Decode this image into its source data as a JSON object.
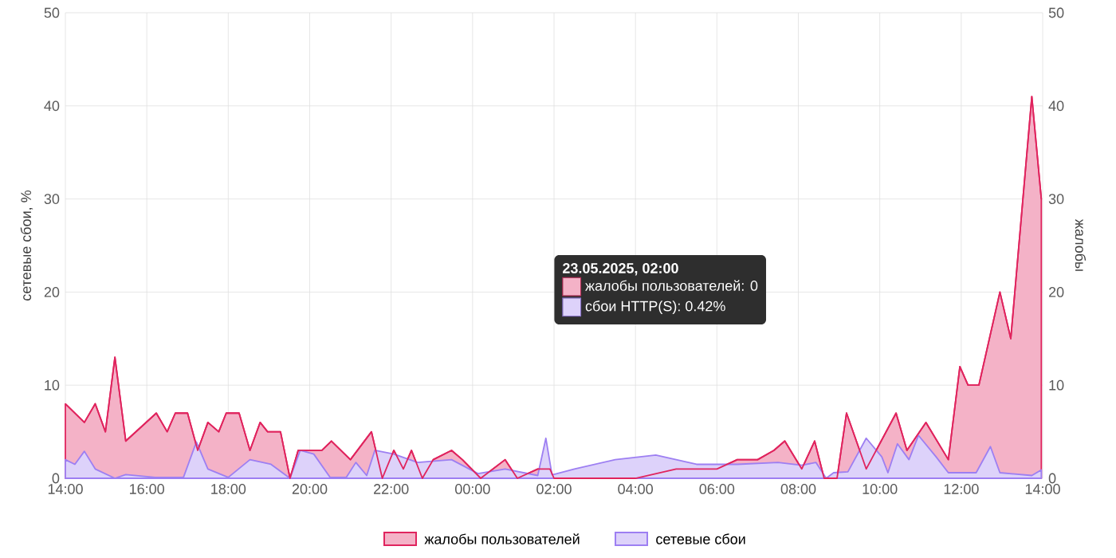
{
  "chart_data": {
    "type": "area",
    "xlim": [
      "2025-05-22T14:00",
      "2025-05-23T14:00"
    ],
    "xticks": [
      {
        "value": "2025-05-22T14:00",
        "label": "14:00"
      },
      {
        "value": "2025-05-22T16:00",
        "label": "16:00"
      },
      {
        "value": "2025-05-22T18:00",
        "label": "18:00"
      },
      {
        "value": "2025-05-22T20:00",
        "label": "20:00"
      },
      {
        "value": "2025-05-22T22:00",
        "label": "22:00"
      },
      {
        "value": "2025-05-23T00:00",
        "label": "00:00"
      },
      {
        "value": "2025-05-23T02:00",
        "label": "02:00"
      },
      {
        "value": "2025-05-23T04:00",
        "label": "04:00"
      },
      {
        "value": "2025-05-23T06:00",
        "label": "06:00"
      },
      {
        "value": "2025-05-23T08:00",
        "label": "08:00"
      },
      {
        "value": "2025-05-23T10:00",
        "label": "10:00"
      },
      {
        "value": "2025-05-23T12:00",
        "label": "12:00"
      },
      {
        "value": "2025-05-23T14:00",
        "label": "14:00"
      }
    ],
    "ylim": [
      0,
      50
    ],
    "yticks": [
      0,
      10,
      20,
      30,
      40,
      50
    ],
    "y2lim": [
      0,
      50
    ],
    "y2ticks": [
      0,
      10,
      20,
      30,
      40,
      50
    ],
    "ylabel": "сетевые сбои, %",
    "y2label": "жалобы",
    "grid": true,
    "legend": "bottom",
    "marker": "none",
    "series": [
      {
        "name": "жалобы пользователей",
        "color": "#e0245e",
        "axis": "y2",
        "x": [
          "2025-05-22T14:00",
          "2025-05-22T14:28",
          "2025-05-22T14:44",
          "2025-05-22T14:59",
          "2025-05-22T15:13",
          "2025-05-22T15:29",
          "2025-05-22T16:14",
          "2025-05-22T16:30",
          "2025-05-22T16:42",
          "2025-05-22T17:00",
          "2025-05-22T17:15",
          "2025-05-22T17:30",
          "2025-05-22T17:46",
          "2025-05-22T17:57",
          "2025-05-22T18:16",
          "2025-05-22T18:32",
          "2025-05-22T18:47",
          "2025-05-22T18:58",
          "2025-05-22T19:17",
          "2025-05-22T19:31",
          "2025-05-22T19:43",
          "2025-05-22T20:18",
          "2025-05-22T20:32",
          "2025-05-22T21:00",
          "2025-05-22T21:31",
          "2025-05-22T21:47",
          "2025-05-22T22:04",
          "2025-05-22T22:18",
          "2025-05-22T22:30",
          "2025-05-22T22:46",
          "2025-05-22T23:02",
          "2025-05-22T23:29",
          "2025-05-22T23:45",
          "2025-05-23T00:12",
          "2025-05-23T00:48",
          "2025-05-23T01:06",
          "2025-05-23T01:36",
          "2025-05-23T01:54",
          "2025-05-23T02:00",
          "2025-05-23T03:00",
          "2025-05-23T04:00",
          "2025-05-23T05:00",
          "2025-05-23T06:00",
          "2025-05-23T06:30",
          "2025-05-23T07:00",
          "2025-05-23T07:24",
          "2025-05-23T07:40",
          "2025-05-23T08:05",
          "2025-05-23T08:24",
          "2025-05-23T08:38",
          "2025-05-23T08:57",
          "2025-05-23T09:11",
          "2025-05-23T09:40",
          "2025-05-23T10:24",
          "2025-05-23T10:40",
          "2025-05-23T11:08",
          "2025-05-23T11:41",
          "2025-05-23T11:58",
          "2025-05-23T12:10",
          "2025-05-23T12:26",
          "2025-05-23T12:57",
          "2025-05-23T13:13",
          "2025-05-23T13:44",
          "2025-05-23T13:58"
        ],
        "values": [
          8,
          6,
          8,
          5,
          13,
          4,
          7,
          5,
          7,
          7,
          3,
          6,
          5,
          7,
          7,
          3,
          6,
          5,
          5,
          0,
          3,
          3,
          4,
          2,
          5,
          0,
          3,
          1,
          3,
          0,
          2,
          3,
          2,
          0,
          2,
          0,
          1,
          1,
          0,
          0,
          0,
          1,
          1,
          2,
          2,
          3,
          4,
          1,
          4,
          0,
          0,
          7,
          1,
          7,
          3,
          6,
          2,
          12,
          10,
          10,
          20,
          15,
          41,
          30
        ]
      },
      {
        "name": "сетевые сбои",
        "color": "#9d7ff2",
        "x": [
          "2025-05-22T14:00",
          "2025-05-22T14:14",
          "2025-05-22T14:28",
          "2025-05-22T14:44",
          "2025-05-22T15:13",
          "2025-05-22T15:29",
          "2025-05-22T16:12",
          "2025-05-22T16:54",
          "2025-05-22T17:13",
          "2025-05-22T17:30",
          "2025-05-22T18:00",
          "2025-05-22T18:32",
          "2025-05-22T19:03",
          "2025-05-22T19:31",
          "2025-05-22T19:46",
          "2025-05-22T20:06",
          "2025-05-22T20:30",
          "2025-05-22T20:54",
          "2025-05-22T21:08",
          "2025-05-22T21:24",
          "2025-05-22T21:36",
          "2025-05-22T22:04",
          "2025-05-22T22:39",
          "2025-05-22T23:29",
          "2025-05-23T00:08",
          "2025-05-23T00:48",
          "2025-05-23T01:36",
          "2025-05-23T01:48",
          "2025-05-23T01:57",
          "2025-05-23T02:00",
          "2025-05-23T02:30",
          "2025-05-23T03:30",
          "2025-05-23T04:30",
          "2025-05-23T05:30",
          "2025-05-23T06:30",
          "2025-05-23T07:30",
          "2025-05-23T08:05",
          "2025-05-23T08:26",
          "2025-05-23T08:41",
          "2025-05-23T08:52",
          "2025-05-23T09:13",
          "2025-05-23T09:40",
          "2025-05-23T10:03",
          "2025-05-23T10:12",
          "2025-05-23T10:26",
          "2025-05-23T10:43",
          "2025-05-23T10:57",
          "2025-05-23T11:23",
          "2025-05-23T11:41",
          "2025-05-23T12:22",
          "2025-05-23T12:43",
          "2025-05-23T12:57",
          "2025-05-23T13:44",
          "2025-05-23T13:58"
        ],
        "values": [
          2,
          1.5,
          2.9,
          1,
          0,
          0.4,
          0.1,
          0.1,
          3.9,
          1,
          0.1,
          2,
          1.5,
          0,
          3,
          2.6,
          0.1,
          0.1,
          1.7,
          0.3,
          3,
          2.6,
          1.7,
          2,
          0.5,
          1,
          0.3,
          4.3,
          0.4,
          0.42,
          1,
          2,
          2.5,
          1.5,
          1.5,
          1.7,
          1.4,
          1.7,
          0,
          0.6,
          0.7,
          4.3,
          2.3,
          0.6,
          3.7,
          2,
          4.6,
          2.3,
          0.6,
          0.6,
          3.4,
          0.6,
          0.3,
          0.9
        ]
      }
    ],
    "annotations": [
      "23.05.2025, 02:00",
      "жалобы пользователей: 0",
      "сбои HTTP(S): 0.42%"
    ]
  }
}
